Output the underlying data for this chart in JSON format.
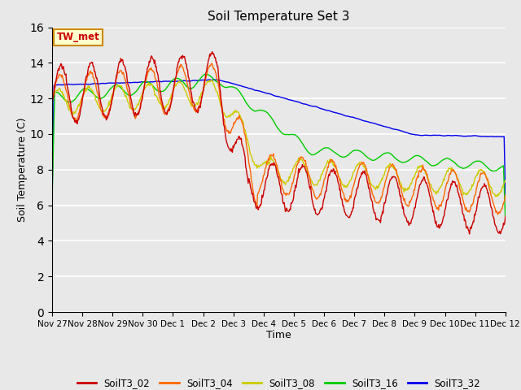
{
  "title": "Soil Temperature Set 3",
  "xlabel": "Time",
  "ylabel": "Soil Temperature (C)",
  "ylim": [
    0,
    16
  ],
  "yticks": [
    0,
    2,
    4,
    6,
    8,
    10,
    12,
    14,
    16
  ],
  "plot_bg_color": "#e8e8e8",
  "colors": {
    "SoilT3_02": "#cc0000",
    "SoilT3_04": "#ff6600",
    "SoilT3_08": "#cccc00",
    "SoilT3_16": "#00cc00",
    "SoilT3_32": "#0000ee"
  },
  "annotation_text": "TW_met",
  "annotation_box_color": "#ffffcc",
  "annotation_box_edge": "#cc8800",
  "annotation_text_color": "#cc0000",
  "xtick_positions": [
    0,
    1,
    2,
    3,
    4,
    5,
    6,
    7,
    8,
    9,
    10,
    11,
    12,
    13,
    14,
    15
  ],
  "xtick_labels": [
    "Nov 27",
    "Nov 28",
    "Nov 29",
    "Nov 30",
    "Dec 1",
    "Dec 2",
    "Dec 3",
    "Dec 4",
    "Dec 5",
    "Dec 6",
    "Dec 7",
    "Dec 8",
    "Dec 9",
    "Dec 10",
    "Dec 11",
    "Dec 12"
  ],
  "line_width": 1.0
}
